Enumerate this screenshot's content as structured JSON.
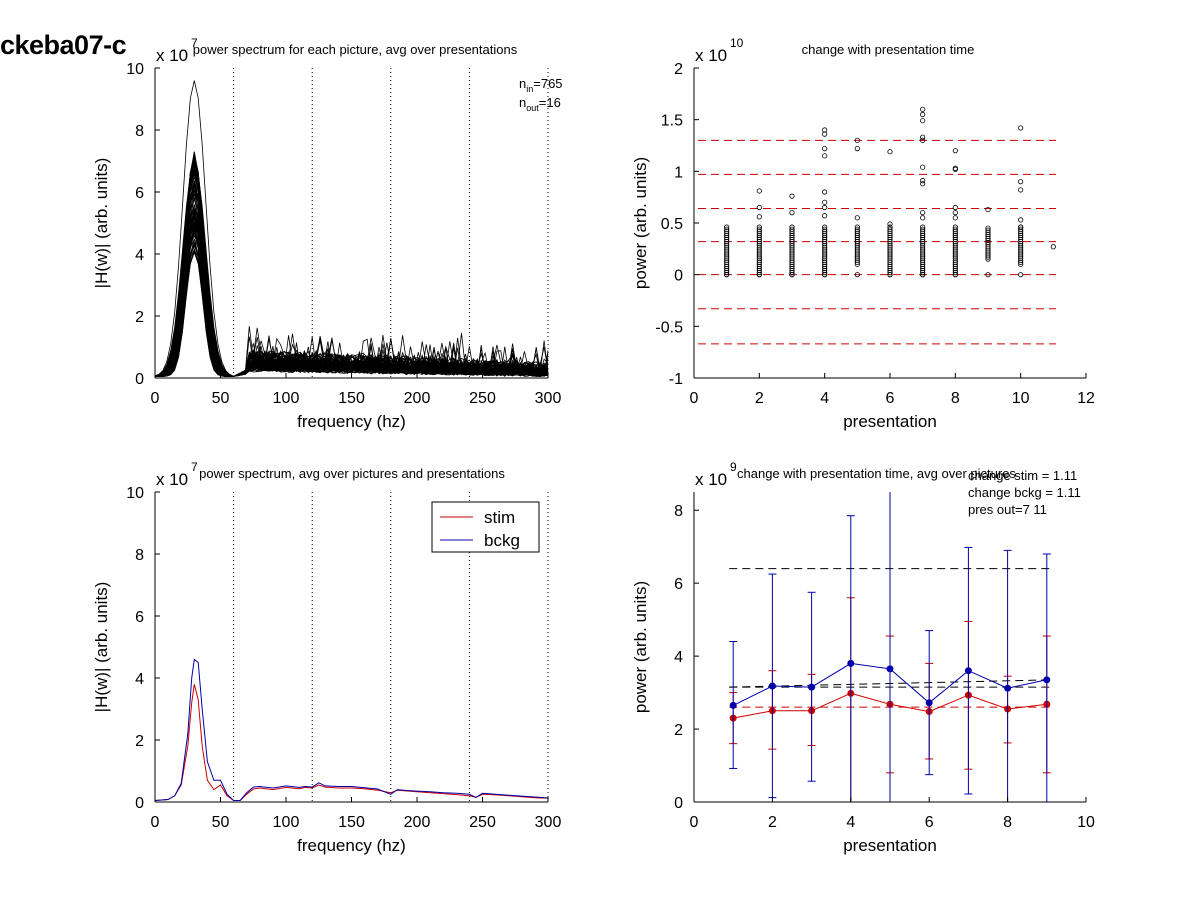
{
  "figure": {
    "title": "ckeba07-c"
  },
  "chart_data": [
    {
      "type": "line",
      "title": "power spectrum for each picture, avg over presentations",
      "xlabel": "frequency (hz)",
      "ylabel": "|H(w)| (arb. units)",
      "exponent_label": "x 10",
      "exponent_power": "7",
      "xlim": [
        0,
        300
      ],
      "ylim": [
        0,
        10
      ],
      "xticks": [
        "0",
        "50",
        "100",
        "150",
        "200",
        "250",
        "300"
      ],
      "yticks": [
        "0",
        "2",
        "4",
        "6",
        "8",
        "10"
      ],
      "vlines": [
        60,
        120,
        180,
        240,
        300
      ],
      "annotations": {
        "n_in": "n",
        "n_in_sub": "in",
        "n_in_val": "=765",
        "n_out": "n",
        "n_out_sub": "out",
        "n_out_val": "=16"
      },
      "series_count": 80,
      "description_of_series": "many black traces; peak 4-10 near 30 hz, broad bump 0.2-1.5 between 70-300 hz",
      "peak_frequency": 30,
      "peak_max": 10,
      "color": "#000000"
    },
    {
      "type": "scatter",
      "title": "change with presentation time",
      "xlabel": "presentation",
      "ylabel": "power (arb. units)",
      "exponent_label": "x 10",
      "exponent_power": "10",
      "xlim": [
        0,
        12
      ],
      "ylim": [
        -1,
        2
      ],
      "xticks": [
        "0",
        "2",
        "4",
        "6",
        "8",
        "10",
        "12"
      ],
      "yticks": [
        "-1",
        "-0.5",
        "0",
        "0.5",
        "1",
        "1.5",
        "2"
      ],
      "hlines": [
        1.3,
        0.97,
        0.64,
        0.32,
        0.0,
        -0.33,
        -0.67
      ],
      "hline_color": "#cc0000",
      "outliers": [
        {
          "x": 2,
          "y": [
            0.81,
            0.65,
            0.56
          ]
        },
        {
          "x": 3,
          "y": [
            0.76,
            0.6
          ]
        },
        {
          "x": 4,
          "y": [
            1.4,
            1.36,
            1.22,
            1.15,
            0.8,
            0.7,
            0.65,
            0.57
          ]
        },
        {
          "x": 5,
          "y": [
            1.3,
            1.22,
            0.55
          ]
        },
        {
          "x": 6,
          "y": [
            1.19,
            0.49
          ]
        },
        {
          "x": 7,
          "y": [
            1.6,
            1.55,
            1.49,
            1.33,
            1.3,
            1.04,
            0.91,
            0.88,
            0.6,
            0.55
          ]
        },
        {
          "x": 8,
          "y": [
            1.2,
            1.03,
            1.02,
            0.65,
            0.6,
            0.55
          ]
        },
        {
          "x": 9,
          "y": [
            0.63
          ]
        },
        {
          "x": 10,
          "y": [
            1.42,
            0.9,
            0.82,
            0.53,
            0.46
          ]
        },
        {
          "x": 11,
          "y": [
            0.27
          ]
        }
      ],
      "clusters": [
        {
          "x": 1,
          "min": 0.0,
          "max": 0.46
        },
        {
          "x": 2,
          "min": 0.0,
          "max": 0.46
        },
        {
          "x": 3,
          "min": 0.0,
          "max": 0.46
        },
        {
          "x": 4,
          "min": 0.0,
          "max": 0.46
        },
        {
          "x": 5,
          "min": 0.1,
          "max": 0.46
        },
        {
          "x": 6,
          "min": 0.0,
          "max": 0.46
        },
        {
          "x": 7,
          "min": 0.0,
          "max": 0.46
        },
        {
          "x": 8,
          "min": 0.0,
          "max": 0.46
        },
        {
          "x": 9,
          "min": 0.15,
          "max": 0.46
        },
        {
          "x": 10,
          "min": 0.1,
          "max": 0.46
        }
      ]
    },
    {
      "type": "line",
      "title": "power spectrum, avg over pictures and presentations",
      "xlabel": "frequency (hz)",
      "ylabel": "|H(w)| (arb. units)",
      "exponent_label": "x 10",
      "exponent_power": "7",
      "xlim": [
        0,
        300
      ],
      "ylim": [
        0,
        10
      ],
      "xticks": [
        "0",
        "50",
        "100",
        "150",
        "200",
        "250",
        "300"
      ],
      "yticks": [
        "0",
        "2",
        "4",
        "6",
        "8",
        "10"
      ],
      "vlines": [
        60,
        120,
        180,
        240,
        300
      ],
      "legend": {
        "position": "top-right",
        "items": [
          "stim",
          "bckg"
        ]
      },
      "x": [
        0,
        10,
        15,
        20,
        25,
        28,
        30,
        33,
        36,
        40,
        45,
        50,
        55,
        60,
        65,
        70,
        75,
        80,
        90,
        100,
        110,
        115,
        120,
        125,
        130,
        140,
        150,
        160,
        170,
        180,
        185,
        190,
        200,
        210,
        220,
        230,
        240,
        245,
        250,
        260,
        270,
        280,
        290,
        300
      ],
      "series": [
        {
          "name": "stim",
          "color": "#cc0000",
          "values": [
            0.05,
            0.08,
            0.2,
            0.55,
            1.8,
            3.2,
            3.8,
            3.3,
            1.8,
            0.7,
            0.4,
            0.55,
            0.2,
            0.05,
            0.05,
            0.25,
            0.42,
            0.45,
            0.4,
            0.47,
            0.43,
            0.47,
            0.45,
            0.55,
            0.48,
            0.45,
            0.45,
            0.43,
            0.38,
            0.3,
            0.38,
            0.36,
            0.33,
            0.3,
            0.27,
            0.24,
            0.2,
            0.15,
            0.25,
            0.23,
            0.2,
            0.17,
            0.14,
            0.12
          ]
        },
        {
          "name": "bckg",
          "color": "#0000aa",
          "values": [
            0.05,
            0.08,
            0.2,
            0.6,
            2.2,
            4.0,
            4.6,
            4.5,
            3.0,
            1.3,
            0.7,
            0.7,
            0.25,
            0.05,
            0.05,
            0.3,
            0.48,
            0.5,
            0.45,
            0.52,
            0.47,
            0.5,
            0.48,
            0.62,
            0.52,
            0.5,
            0.5,
            0.46,
            0.42,
            0.25,
            0.4,
            0.38,
            0.35,
            0.33,
            0.3,
            0.28,
            0.25,
            0.15,
            0.28,
            0.25,
            0.22,
            0.19,
            0.16,
            0.13
          ]
        }
      ]
    },
    {
      "type": "line",
      "title": "change with presentation time, avg over pictures",
      "xlabel": "presentation",
      "ylabel": "power (arb. units)",
      "exponent_label": "x 10",
      "exponent_power": "9",
      "xlim": [
        0,
        10
      ],
      "ylim": [
        0,
        8.5
      ],
      "xticks": [
        "0",
        "2",
        "4",
        "6",
        "8",
        "10"
      ],
      "yticks": [
        "0",
        "2",
        "4",
        "6",
        "8"
      ],
      "annotations": [
        "change stim = 1.11",
        "change bckg = 1.11",
        "pres out=7 11"
      ],
      "x": [
        1,
        2,
        3,
        4,
        5,
        6,
        7,
        8,
        9
      ],
      "series": [
        {
          "name": "stim",
          "color": "#cc0000",
          "values": [
            2.3,
            2.5,
            2.5,
            2.98,
            2.68,
            2.48,
            2.93,
            2.55,
            2.68
          ],
          "err_low": [
            1.6,
            1.45,
            1.55,
            0.0,
            0.8,
            1.18,
            0.9,
            1.62,
            0.8
          ],
          "err_high": [
            3.0,
            3.6,
            3.5,
            5.6,
            4.55,
            3.8,
            4.95,
            3.45,
            4.55
          ]
        },
        {
          "name": "bckg",
          "color": "#0000aa",
          "values": [
            2.65,
            3.18,
            3.15,
            3.8,
            3.65,
            2.72,
            3.6,
            3.12,
            3.35
          ],
          "err_low": [
            0.92,
            0.12,
            0.57,
            0.0,
            0.0,
            0.75,
            0.22,
            0.0,
            0.0
          ],
          "err_high": [
            4.4,
            6.25,
            5.75,
            7.85,
            8.5,
            4.7,
            6.98,
            6.9,
            6.8
          ]
        }
      ],
      "hlines": [
        {
          "y": 6.4,
          "color": "#000000"
        },
        {
          "y": 3.15,
          "color": "#000000"
        },
        {
          "y": 2.6,
          "color": "#cc0000"
        }
      ],
      "trend": {
        "color": "#000000",
        "from": 3.15,
        "to": 3.35
      }
    }
  ]
}
